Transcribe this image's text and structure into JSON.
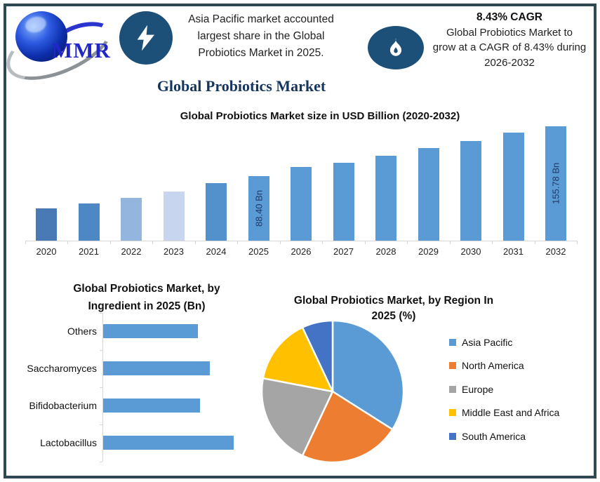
{
  "header": {
    "logo_text": "MMR",
    "note_left": {
      "lines": [
        "Asia Pacific market accounted",
        "largest share in the Global",
        "Probiotics Market in 2025."
      ]
    },
    "note_right": {
      "cagr_title": "8.43% CAGR",
      "lines": [
        "Global Probiotics Market to",
        "grow at a CAGR of 8.43% during",
        "2026-2032"
      ]
    }
  },
  "page_title": "Global Probiotics Market",
  "colors": {
    "frame_border": "#2e4953",
    "icon_circle": "#1d5078",
    "title_navy": "#17365d",
    "bar_default": "#5b9bd5",
    "bar_label_text": "#1f3864"
  },
  "chart_data": [
    {
      "type": "bar",
      "title": "Global Probiotics Market size in USD Billion (2020-2032)",
      "categories": [
        "2020",
        "2021",
        "2022",
        "2023",
        "2024",
        "2025",
        "2026",
        "2027",
        "2028",
        "2029",
        "2030",
        "2031",
        "2032"
      ],
      "values": [
        44,
        51,
        58,
        67,
        78,
        88.4,
        100,
        106,
        116,
        126,
        136,
        147,
        155.78
      ],
      "bar_colors": [
        "#4a7ab5",
        "#4d88c4",
        "#93b5de",
        "#c7d6ee",
        "#5391cd",
        "#5b9bd5",
        "#5b9bd5",
        "#5b9bd5",
        "#5b9bd5",
        "#5b9bd5",
        "#5b9bd5",
        "#5b9bd5",
        "#5b9bd5"
      ],
      "annotations": [
        {
          "category": "2025",
          "text": "88.40 Bn"
        },
        {
          "category": "2032",
          "text": "155.78 Bn"
        }
      ],
      "ylabel": "USD Billion",
      "ylim": [
        0,
        160
      ],
      "grid": false,
      "values_estimated_except_labeled": true
    },
    {
      "type": "bar",
      "orientation": "horizontal",
      "title": "Global Probiotics Market, by Ingredient in 2025 (Bn)",
      "categories": [
        "Others",
        "Saccharomyces",
        "Bifidobacterium",
        "Lactobacillus"
      ],
      "values": [
        24,
        27,
        24.5,
        33
      ],
      "bar_color": "#5b9bd5",
      "xlim": [
        0,
        35
      ],
      "values_estimated": true
    },
    {
      "type": "pie",
      "title": "Global Probiotics Market, by Region In 2025 (%)",
      "labels": [
        "Asia Pacific",
        "North America",
        "Europe",
        "Middle East and Africa",
        "South America"
      ],
      "values": [
        34,
        23,
        21,
        15,
        7
      ],
      "colors": [
        "#5b9bd5",
        "#ed7d31",
        "#a5a5a5",
        "#ffc000",
        "#4472c4"
      ],
      "legend_position": "right",
      "values_estimated": true
    }
  ]
}
